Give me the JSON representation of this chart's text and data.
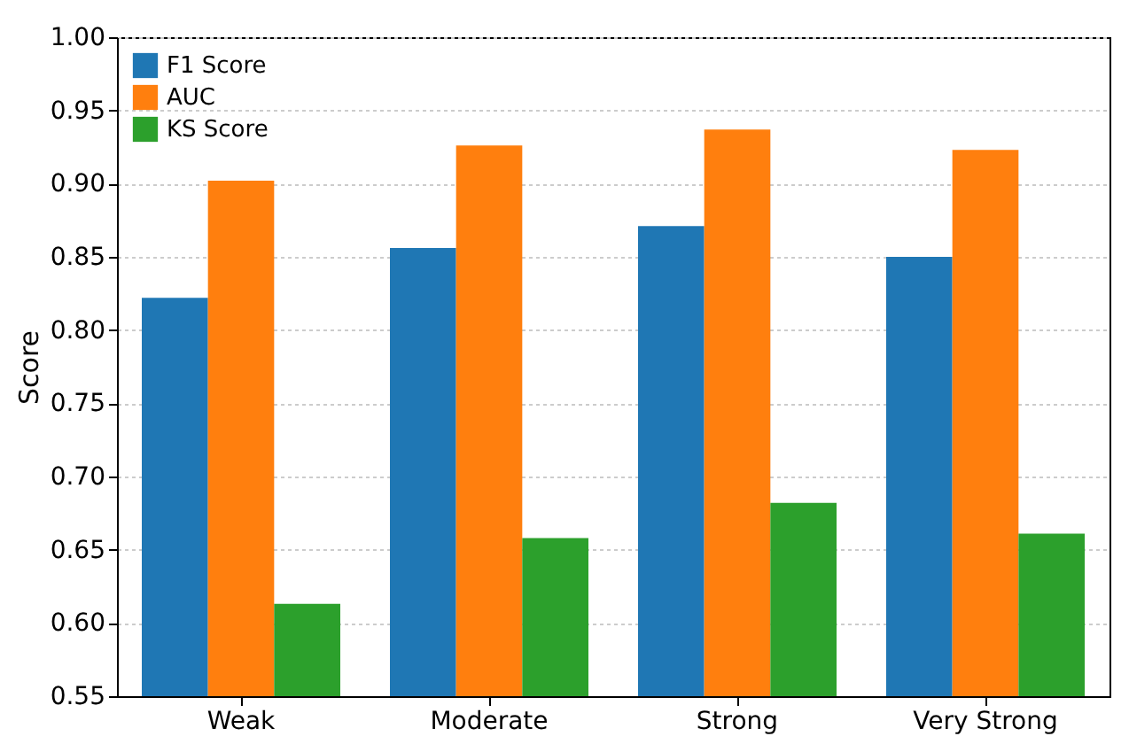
{
  "chart_data": {
    "type": "bar",
    "ylabel": "Score",
    "categories": [
      "Weak",
      "Moderate",
      "Strong",
      "Very Strong"
    ],
    "series": [
      {
        "name": "F1 Score",
        "color": "#1f77b4",
        "values": [
          0.822,
          0.856,
          0.871,
          0.85
        ]
      },
      {
        "name": "AUC",
        "color": "#ff7f0e",
        "values": [
          0.902,
          0.926,
          0.937,
          0.923
        ]
      },
      {
        "name": "KS Score",
        "color": "#2ca02c",
        "values": [
          0.613,
          0.658,
          0.682,
          0.661
        ]
      }
    ],
    "ylim": [
      0.55,
      1.0
    ],
    "yticks": [
      {
        "value": 0.55,
        "label": "0.55"
      },
      {
        "value": 0.6,
        "label": "0.60"
      },
      {
        "value": 0.65,
        "label": "0.65"
      },
      {
        "value": 0.7,
        "label": "0.70"
      },
      {
        "value": 0.75,
        "label": "0.75"
      },
      {
        "value": 0.8,
        "label": "0.80"
      },
      {
        "value": 0.85,
        "label": "0.85"
      },
      {
        "value": 0.9,
        "label": "0.90"
      },
      {
        "value": 0.95,
        "label": "0.95"
      },
      {
        "value": 1.0,
        "label": "1.00"
      }
    ],
    "grid": "y",
    "legend": "top left"
  }
}
